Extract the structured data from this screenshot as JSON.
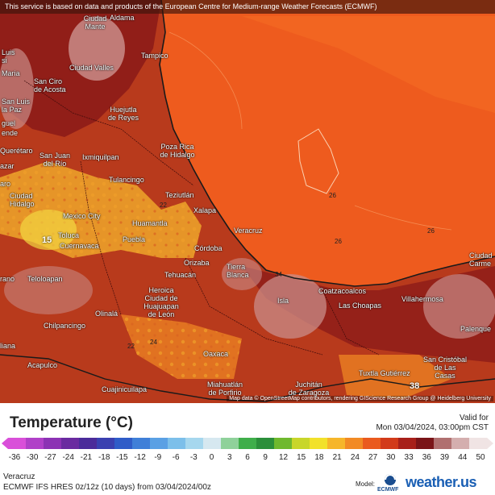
{
  "banner": "This service is based on data and products of the European Centre for Medium-range Weather Forecasts (ECMWF)",
  "attribution": "Map data © OpenStreetMap contributors, rendering GIScience Research Group @ Heidelberg University",
  "cities": {
    "aldama": "Aldama",
    "ciudad_mante": "Ciudad\nMante",
    "luis": "Luis\nsi",
    "ciudad_valles": "Ciudad Valles",
    "tampico": "Tampico",
    "maria": "Maria",
    "san_ciro": "San Ciro\nde Acosta",
    "san_luis_paz": "San Luis\nla Paz",
    "huejutla": "Huejutla\nde Reyes",
    "guel": "guel",
    "ende": "ende",
    "queretaro": "Querétaro",
    "san_juan_rio": "San Juan\ndel Río",
    "ixmiquilpan": "Ixmiquilpan",
    "poza_rica": "Poza Rica\nde Hidalgo",
    "azar": "azar",
    "aro": "aro",
    "tulancingo": "Tulancingo",
    "ciudad_hidalgo": "Ciudad\nHidalgo",
    "teziutlan": "Teziutlán",
    "xalapa": "Xalapa",
    "mexico_city": "Mexico City",
    "huamantla": "Huamantla",
    "toluca": "Toluca",
    "cuernavaca": "Cuernavaca",
    "puebla": "Puebla",
    "veracruz": "Veracruz",
    "cordoba": "Córdoba",
    "orizaba": "Orizaba",
    "tierra_blanca": "Tierra\nBlanca",
    "teloloapan": "Teloloapan",
    "tehuacan": "Tehuacán",
    "rano": "rano",
    "heroica": "Heroica\nCiudad de\nHuajuapan\nde León",
    "coatzacoalcos": "Coatzacoalcos",
    "las_choapas": "Las Choapas",
    "villahermosa": "Villahermosa",
    "isla": "Isla",
    "olinala": "Olinalá",
    "chilpancingo": "Chilpancingo",
    "liana": "liana",
    "ciudad_carmen": "Ciudad\nCarme",
    "palenque": "Palenque",
    "oaxaca": "Oaxaca",
    "acapulco": "Acapulco",
    "san_cristobal": "San Cristóbal\nde Las\nCasas",
    "tuxtla": "Tuxtla Gutiérrez",
    "juchitan": "Juchitán\nde Zaragoza",
    "miahuatlan": "Miahuatlán\nde Porfirio",
    "cuajinicuilapa": "Cuajinicuilapa"
  },
  "map_values": {
    "v15": "15",
    "v22": "22",
    "v26a": "26",
    "v26b": "26",
    "v26c": "26",
    "v34": "34",
    "v24": "24",
    "v22b": "22",
    "v38": "38"
  },
  "legend": {
    "title": "Temperature (°C)",
    "valid_for": "Valid for",
    "valid_time": "Mon 03/04/2024, 03:00pm CST",
    "ticks": [
      "-36",
      "-30",
      "-27",
      "-24",
      "-21",
      "-18",
      "-15",
      "-12",
      "-9",
      "-6",
      "-3",
      "0",
      "3",
      "6",
      "9",
      "12",
      "15",
      "18",
      "21",
      "24",
      "27",
      "30",
      "33",
      "36",
      "39",
      "44",
      "50"
    ],
    "colors": [
      "#d94fd9",
      "#b040c8",
      "#8c32b4",
      "#6a2aa0",
      "#4b2b9a",
      "#3a40b0",
      "#2f5cc8",
      "#3f7fd8",
      "#5aa0e4",
      "#7cbfea",
      "#a6d7ee",
      "#d6e8f0",
      "#8fd19a",
      "#3fae4a",
      "#2b8f3a",
      "#6fb92e",
      "#c8d62a",
      "#f2e12a",
      "#f6b62a",
      "#f28a24",
      "#ea5a1e",
      "#d23a1a",
      "#a8201a",
      "#7a1418",
      "#b07070",
      "#d4aeae",
      "#f0e4e4"
    ],
    "location": "Veracruz",
    "model": "ECMWF IFS HRES 0z/12z (10 days) from 03/04/2024/00z",
    "model_label": "Model:",
    "ecmwf_logo_text": "ECMWF",
    "brand": "weather.us"
  },
  "map_colors": {
    "sea": "#ee5b1e",
    "sea_light": "#f46a22",
    "land": "#b83a1c",
    "land_dark": "#8a1a18",
    "highland": "#c98c88",
    "hot": "#f5b42c"
  }
}
